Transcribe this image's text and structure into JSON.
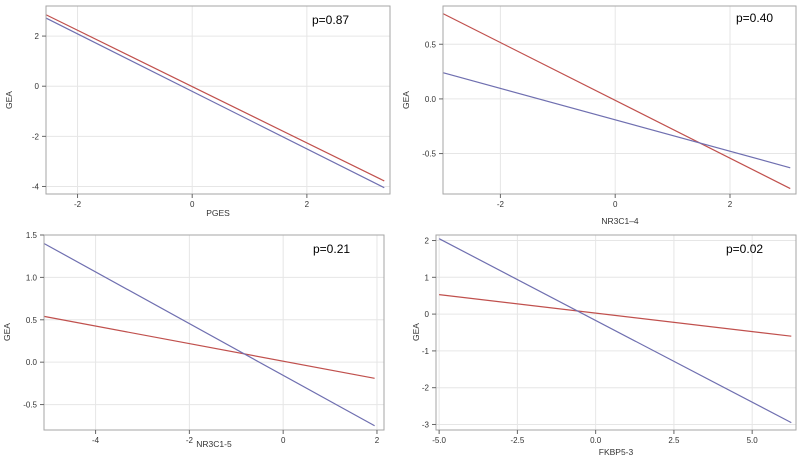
{
  "chart_data": [
    {
      "type": "line",
      "title": "",
      "xlabel": "PGES",
      "ylabel": "GEA",
      "annotation": "p=0.87",
      "xlim": [
        -2.55,
        3.45
      ],
      "ylim": [
        -4.3,
        3.2
      ],
      "xticks": [
        -2,
        0,
        2
      ],
      "yticks": [
        -4,
        -2,
        0,
        2
      ],
      "xtick_labels": [
        "-2",
        "0",
        "2"
      ],
      "ytick_labels": [
        "-4",
        "-2",
        "0",
        "2"
      ],
      "grid": true,
      "series": [
        {
          "name": "red",
          "color": "#c0504d",
          "x": [
            -2.55,
            3.35
          ],
          "y": [
            2.85,
            -3.78
          ]
        },
        {
          "name": "blue",
          "color": "#6f6fb0",
          "x": [
            -2.55,
            3.35
          ],
          "y": [
            2.72,
            -4.05
          ]
        }
      ]
    },
    {
      "type": "line",
      "title": "",
      "xlabel": "NR3C1–4",
      "ylabel": "GEA",
      "annotation": "p=0.40",
      "xlim": [
        -3.0,
        3.15
      ],
      "ylim": [
        -0.87,
        0.85
      ],
      "xticks": [
        -2,
        0,
        2
      ],
      "yticks": [
        -0.5,
        0.0,
        0.5
      ],
      "xtick_labels": [
        "-2",
        "0",
        "2"
      ],
      "ytick_labels": [
        "-0.5",
        "0.0",
        "0.5"
      ],
      "grid": true,
      "series": [
        {
          "name": "red",
          "color": "#c0504d",
          "x": [
            -3.0,
            3.05
          ],
          "y": [
            0.78,
            -0.82
          ]
        },
        {
          "name": "blue",
          "color": "#6f6fb0",
          "x": [
            -3.0,
            3.05
          ],
          "y": [
            0.24,
            -0.63
          ]
        }
      ]
    },
    {
      "type": "line",
      "title": "",
      "xlabel": "NR3C1-5",
      "ylabel": "GEA",
      "annotation": "p=0.21",
      "xlim": [
        -5.1,
        2.15
      ],
      "ylim": [
        -0.8,
        1.5
      ],
      "xticks": [
        -4,
        -2,
        0,
        2
      ],
      "yticks": [
        -0.5,
        0.0,
        0.5,
        1.0,
        1.5
      ],
      "xtick_labels": [
        "-4",
        "-2",
        "0",
        "2"
      ],
      "ytick_labels": [
        "-0.5",
        "0.0",
        "0.5",
        "1.0",
        "1.5"
      ],
      "grid": true,
      "series": [
        {
          "name": "red",
          "color": "#c0504d",
          "x": [
            -5.1,
            1.95
          ],
          "y": [
            0.54,
            -0.19
          ]
        },
        {
          "name": "blue",
          "color": "#6f6fb0",
          "x": [
            -5.1,
            1.95
          ],
          "y": [
            1.4,
            -0.75
          ]
        }
      ]
    },
    {
      "type": "line",
      "title": "",
      "xlabel": "FKBP5-3",
      "ylabel": "GEA",
      "annotation": "p=0.02",
      "xlim": [
        -5.1,
        6.4
      ],
      "ylim": [
        -3.15,
        2.15
      ],
      "xticks": [
        -5.0,
        -2.5,
        0.0,
        2.5,
        5.0
      ],
      "yticks": [
        -3,
        -2,
        -1,
        0,
        1,
        2
      ],
      "xtick_labels": [
        "-5.0",
        "-2.5",
        "0.0",
        "2.5",
        "5.0"
      ],
      "ytick_labels": [
        "-3",
        "-2",
        "-1",
        "0",
        "1",
        "2"
      ],
      "grid": true,
      "series": [
        {
          "name": "red",
          "color": "#c0504d",
          "x": [
            -5.0,
            6.25
          ],
          "y": [
            0.53,
            -0.6
          ]
        },
        {
          "name": "blue",
          "color": "#6f6fb0",
          "x": [
            -5.0,
            6.25
          ],
          "y": [
            2.05,
            -2.95
          ]
        }
      ]
    }
  ]
}
